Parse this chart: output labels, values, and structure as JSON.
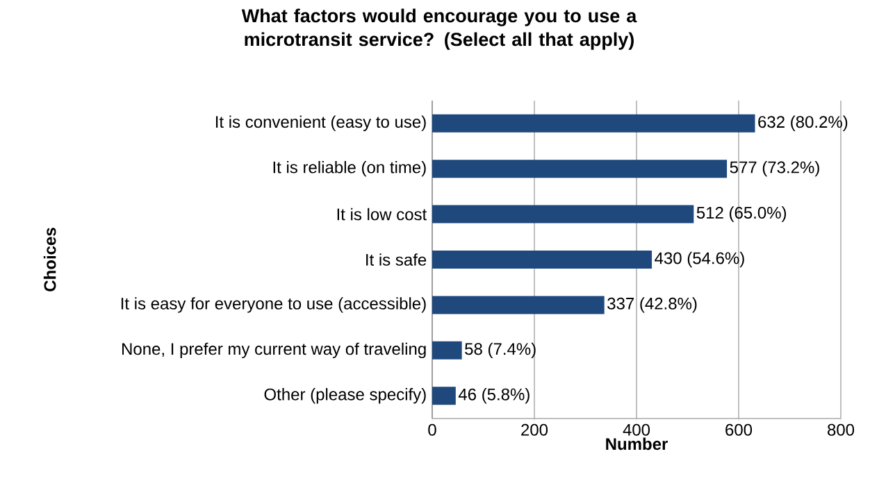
{
  "chart_data": {
    "type": "bar",
    "orientation": "horizontal",
    "title": "What factors would encourage you to use a microtransit service? (Select all that apply)",
    "xlabel": "Number",
    "ylabel": "Choices",
    "categories": [
      "It is convenient (easy to use)",
      "It is reliable (on time)",
      "It is low cost",
      "It is safe",
      "It is easy for everyone to use (accessible)",
      "None, I prefer my current way of traveling",
      "Other (please specify)"
    ],
    "values": [
      632,
      577,
      512,
      430,
      337,
      58,
      46
    ],
    "value_labels": [
      "632 (80.2%)",
      "577 (73.2%)",
      "512 (65.0%)",
      "430 (54.6%)",
      "337 (42.8%)",
      "58 (7.4%)",
      "46 (5.8%)"
    ],
    "color": "#1f497d",
    "xlim": [
      0,
      800
    ],
    "xticks": [
      0,
      200,
      400,
      600,
      800
    ],
    "grid": "x"
  }
}
